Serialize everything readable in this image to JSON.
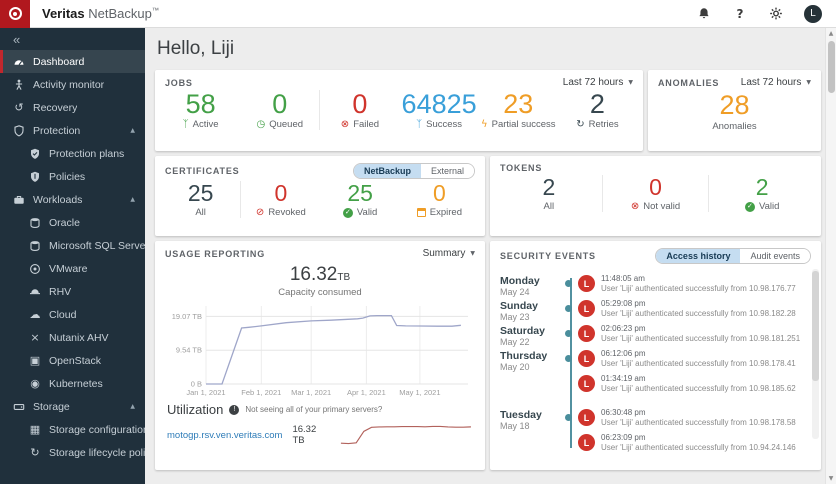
{
  "topbar": {
    "brand_bold": "Veritas",
    "brand_name": "NetBackup",
    "brand_tm": "™",
    "help_label": "?",
    "avatar_initial": "L"
  },
  "icons": {
    "collapse": "«",
    "chevron_up": "▲",
    "caret_down": "▼",
    "scroll_up": "▲",
    "scroll_down": "▼",
    "info": "!",
    "check": "✓",
    "recovery_arrow": "↺",
    "cloud": "☁",
    "nutanix_x": "×",
    "openstack_square": "▣",
    "kubernetes_circle": "◉",
    "storage_config_grid": "▦",
    "lifecycle_arrow": "↻",
    "job_active": "ᛉ",
    "job_queued": "◷",
    "job_failed": "⊗",
    "job_success": "ᛉ",
    "job_partial": "ϟ",
    "job_retries": "↻",
    "cert_revoked": "⊘",
    "token_notvalid": "⊗"
  },
  "colors": {
    "brand_red": "#b1181e",
    "sidebar_bg": "#20303c",
    "active_red_border": "#c1272d",
    "green": "#43a047",
    "red": "#d0342c",
    "blue": "#399fd9",
    "orange": "#ef9d26",
    "dark": "#37474f",
    "chart_line": "#9fa6c9",
    "spark_line": "#b2625c",
    "timeline_teal": "#4a8e9c",
    "toggle_selected_bg": "#c5ddf1"
  },
  "sidebar": {
    "items": [
      {
        "label": "Dashboard"
      },
      {
        "label": "Activity monitor"
      },
      {
        "label": "Recovery"
      },
      {
        "label": "Protection"
      },
      {
        "label": "Protection plans"
      },
      {
        "label": "Policies"
      },
      {
        "label": "Workloads"
      },
      {
        "label": "Oracle"
      },
      {
        "label": "Microsoft SQL Server"
      },
      {
        "label": "VMware"
      },
      {
        "label": "RHV"
      },
      {
        "label": "Cloud"
      },
      {
        "label": "Nutanix AHV"
      },
      {
        "label": "OpenStack"
      },
      {
        "label": "Kubernetes"
      },
      {
        "label": "Storage"
      },
      {
        "label": "Storage configuration"
      },
      {
        "label": "Storage lifecycle policies"
      }
    ]
  },
  "greeting": "Hello, Liji",
  "jobs": {
    "title": "JOBS",
    "time_filter": "Last 72 hours",
    "stats": [
      {
        "value": "58",
        "label": "Active"
      },
      {
        "value": "0",
        "label": "Queued"
      },
      {
        "value": "0",
        "label": "Failed"
      },
      {
        "value": "64825",
        "label": "Success"
      },
      {
        "value": "23",
        "label": "Partial success"
      },
      {
        "value": "2",
        "label": "Retries"
      }
    ]
  },
  "anomalies": {
    "title": "ANOMALIES",
    "time_filter": "Last 72 hours",
    "value": "28",
    "label": "Anomalies"
  },
  "certificates": {
    "title": "CERTIFICATES",
    "tabs": [
      "NetBackup",
      "External"
    ],
    "active_tab": "NetBackup",
    "stats": [
      {
        "value": "25",
        "label": "All"
      },
      {
        "value": "0",
        "label": "Revoked"
      },
      {
        "value": "25",
        "label": "Valid"
      },
      {
        "value": "0",
        "label": "Expired"
      }
    ]
  },
  "tokens": {
    "title": "TOKENS",
    "stats": [
      {
        "value": "2",
        "label": "All"
      },
      {
        "value": "0",
        "label": "Not valid"
      },
      {
        "value": "2",
        "label": "Valid"
      }
    ]
  },
  "usage": {
    "title": "USAGE REPORTING",
    "view_filter": "Summary",
    "headline_value": "16.32",
    "headline_unit": "TB",
    "headline_label": "Capacity consumed",
    "utilization": {
      "heading": "Utilization",
      "notice": "Not seeing all of your primary servers?",
      "server": "motogp.rsv.ven.veritas.com",
      "size": "16.32 TB"
    }
  },
  "security": {
    "title": "SECURITY EVENTS",
    "tabs": [
      "Access history",
      "Audit events"
    ],
    "active_tab": "Access history",
    "avatar_initial": "L",
    "groups": [
      {
        "day": "Monday",
        "date": "May 24",
        "events": [
          {
            "time": "11:48:05 am",
            "text": "User 'Liji' authenticated successfully from 10.98.176.77"
          }
        ]
      },
      {
        "day": "Sunday",
        "date": "May 23",
        "events": [
          {
            "time": "05:29:08 pm",
            "text": "User 'Liji' authenticated successfully from 10.98.182.28"
          }
        ]
      },
      {
        "day": "Saturday",
        "date": "May 22",
        "events": [
          {
            "time": "02:06:23 pm",
            "text": "User 'Liji' authenticated successfully from 10.98.181.251"
          }
        ]
      },
      {
        "day": "Thursday",
        "date": "May 20",
        "events": [
          {
            "time": "06:12:06 pm",
            "text": "User 'Liji' authenticated successfully from 10.98.178.41"
          },
          {
            "time": "01:34:19 am",
            "text": "User 'Liji' authenticated successfully from 10.98.185.62"
          }
        ]
      },
      {
        "day": "Tuesday",
        "date": "May 18",
        "events": [
          {
            "time": "06:30:48 pm",
            "text": "User 'Liji' authenticated successfully from 10.98.178.58"
          },
          {
            "time": "06:23:09 pm",
            "text": "User 'Liji' authenticated successfully from 10.94.24.146"
          }
        ]
      }
    ]
  },
  "chart_data": [
    {
      "type": "line",
      "title": "Capacity consumed",
      "headline": "16.32 TB",
      "x_unit": "days since Jan 1, 2021",
      "y_unit": "TB",
      "x": [
        0,
        9,
        20,
        24,
        31,
        45,
        59,
        70,
        85,
        88,
        92,
        96,
        104,
        107,
        112,
        120,
        130,
        138,
        143
      ],
      "y": [
        0,
        0,
        15.8,
        16.0,
        16.4,
        17.3,
        17.8,
        18.0,
        18.4,
        18.6,
        19.2,
        19.3,
        19.3,
        16.5,
        16.4,
        16.35,
        16.3,
        16.3,
        16.55
      ],
      "x_ticks": [
        {
          "pos": 0,
          "label": "Jan 1, 2021"
        },
        {
          "pos": 31,
          "label": "Feb 1, 2021"
        },
        {
          "pos": 59,
          "label": "Mar 1, 2021"
        },
        {
          "pos": 90,
          "label": "Apr 1, 2021"
        },
        {
          "pos": 120,
          "label": "May 1, 2021"
        }
      ],
      "y_ticks": [
        {
          "pos": 0,
          "label": "0 B"
        },
        {
          "pos": 9.54,
          "label": "9.54 TB"
        },
        {
          "pos": 19.07,
          "label": "19.07 TB"
        }
      ],
      "x_max": 147,
      "y_max": 22,
      "line_color": "#9fa6c9",
      "grid": true,
      "legend": false
    },
    {
      "type": "line",
      "series_label": "motogp.rsv.ven.veritas.com capacity trend",
      "values": [
        8,
        7.8,
        8.2,
        14,
        16,
        16.2,
        16.3,
        16.3,
        16.4,
        16.4,
        16.4,
        16.3,
        16.5,
        16.5,
        16.2,
        16.1,
        16.1,
        16.25
      ],
      "color": "#b2625c"
    }
  ]
}
